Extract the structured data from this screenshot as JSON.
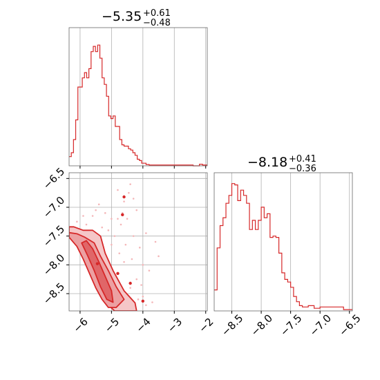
{
  "chart_data": {
    "type": "corner",
    "color": "#d62728",
    "grid": true,
    "hist1": {
      "title_main": "−5.35",
      "title_plus": "+0.61",
      "title_minus": "−0.48",
      "xlim": [
        -6.35,
        -1.95
      ],
      "x_ticks": [
        -6,
        -5,
        -4,
        -3,
        -2
      ],
      "y_range": [
        0,
        1
      ],
      "bin_edges": [
        -6.35,
        -6.28,
        -6.21,
        -6.14,
        -6.07,
        -6.0,
        -5.93,
        -5.86,
        -5.79,
        -5.72,
        -5.65,
        -5.58,
        -5.51,
        -5.44,
        -5.37,
        -5.3,
        -5.23,
        -5.16,
        -5.09,
        -5.02,
        -4.95,
        -4.88,
        -4.81,
        -4.74,
        -4.67,
        -4.6,
        -4.53,
        -4.46,
        -4.39,
        -4.32,
        -4.25,
        -4.18,
        -4.11,
        -4.04,
        -3.97,
        -3.9,
        -3.8,
        -3.6,
        -3.3,
        -3.0,
        -2.7,
        -2.4,
        -2.2,
        -2.1,
        -1.95
      ],
      "counts": [
        0.07,
        0.1,
        0.2,
        0.35,
        0.6,
        0.6,
        0.67,
        0.71,
        0.67,
        0.74,
        0.87,
        0.91,
        0.87,
        0.92,
        0.82,
        0.67,
        0.62,
        0.53,
        0.38,
        0.36,
        0.38,
        0.3,
        0.3,
        0.2,
        0.16,
        0.15,
        0.15,
        0.13,
        0.12,
        0.1,
        0.08,
        0.05,
        0.04,
        0.02,
        0.02,
        0.01,
        0.006,
        0.006,
        0.006,
        0.006,
        0.006,
        0.0,
        0.012,
        0.006
      ]
    },
    "hist2": {
      "title_main": "−8.18",
      "title_plus": "+0.41",
      "title_minus": "−0.36",
      "xlim": [
        -8.8,
        -6.45
      ],
      "x_ticks": [
        -8.5,
        -8.0,
        -7.5,
        -7.0,
        -6.5
      ],
      "x_tick_labels": [
        "−8.5",
        "−8.0",
        "−7.5",
        "−7.0",
        "−6.5"
      ],
      "y_range": [
        0,
        1
      ],
      "bin_edges": [
        -8.8,
        -8.75,
        -8.7,
        -8.65,
        -8.6,
        -8.55,
        -8.5,
        -8.45,
        -8.4,
        -8.35,
        -8.3,
        -8.25,
        -8.2,
        -8.15,
        -8.1,
        -8.05,
        -8.0,
        -7.95,
        -7.9,
        -7.85,
        -7.8,
        -7.75,
        -7.7,
        -7.65,
        -7.6,
        -7.55,
        -7.5,
        -7.45,
        -7.4,
        -7.35,
        -7.3,
        -7.2,
        -7.1,
        -7.0,
        -6.9,
        -6.8,
        -6.7,
        -6.6,
        -6.45
      ],
      "counts": [
        0.16,
        0.48,
        0.65,
        0.71,
        0.82,
        0.88,
        0.97,
        0.96,
        0.84,
        0.92,
        0.88,
        0.82,
        0.62,
        0.69,
        0.62,
        0.69,
        0.79,
        0.71,
        0.74,
        0.56,
        0.57,
        0.56,
        0.44,
        0.29,
        0.24,
        0.22,
        0.18,
        0.11,
        0.07,
        0.04,
        0.03,
        0.04,
        0.02,
        0.03,
        0.03,
        0.03,
        0.03,
        0.01
      ]
    },
    "scatter2d": {
      "xlim": [
        -6.35,
        -1.95
      ],
      "ylim": [
        -8.8,
        -6.4
      ],
      "x_ticks": [
        -6,
        -5,
        -4,
        -3,
        -2
      ],
      "x_tick_labels": [
        "−6",
        "−5",
        "−4",
        "−3",
        "−2"
      ],
      "y_ticks": [
        -6.5,
        -7.0,
        -7.5,
        -8.0,
        -8.5
      ],
      "y_tick_labels": [
        "−6.5",
        "−7.0",
        "−7.5",
        "−8.0",
        "−8.5"
      ],
      "contour_levels": [
        [
          [
            -6.35,
            -7.44
          ],
          [
            -6.2,
            -7.52
          ],
          [
            -5.95,
            -7.72
          ],
          [
            -5.75,
            -7.98
          ],
          [
            -5.6,
            -8.18
          ],
          [
            -5.45,
            -8.38
          ],
          [
            -5.3,
            -8.55
          ],
          [
            -5.1,
            -8.7
          ],
          [
            -4.9,
            -8.8
          ],
          [
            -4.2,
            -8.8
          ],
          [
            -4.25,
            -8.66
          ],
          [
            -4.6,
            -8.45
          ],
          [
            -4.95,
            -8.1
          ],
          [
            -5.2,
            -7.8
          ],
          [
            -5.35,
            -7.5
          ],
          [
            -5.6,
            -7.4
          ],
          [
            -5.9,
            -7.4
          ],
          [
            -6.2,
            -7.34
          ],
          [
            -6.35,
            -7.34
          ]
        ],
        [
          [
            -6.35,
            -7.52
          ],
          [
            -6.1,
            -7.68
          ],
          [
            -5.9,
            -7.9
          ],
          [
            -5.7,
            -8.15
          ],
          [
            -5.5,
            -8.4
          ],
          [
            -5.3,
            -8.6
          ],
          [
            -5.1,
            -8.74
          ],
          [
            -4.85,
            -8.74
          ],
          [
            -4.6,
            -8.6
          ],
          [
            -4.85,
            -8.38
          ],
          [
            -5.1,
            -8.1
          ],
          [
            -5.35,
            -7.85
          ],
          [
            -5.55,
            -7.62
          ],
          [
            -5.85,
            -7.52
          ],
          [
            -6.1,
            -7.46
          ],
          [
            -6.35,
            -7.44
          ]
        ],
        [
          [
            -5.95,
            -7.62
          ],
          [
            -5.75,
            -7.85
          ],
          [
            -5.55,
            -8.1
          ],
          [
            -5.35,
            -8.38
          ],
          [
            -5.15,
            -8.6
          ],
          [
            -4.95,
            -8.65
          ],
          [
            -5.0,
            -8.45
          ],
          [
            -5.2,
            -8.2
          ],
          [
            -5.4,
            -7.95
          ],
          [
            -5.6,
            -7.72
          ],
          [
            -5.8,
            -7.58
          ]
        ]
      ],
      "points": [
        [
          -4.4,
          -6.6
        ],
        [
          -4.8,
          -6.7
        ],
        [
          -4.6,
          -6.9
        ],
        [
          -5.4,
          -6.95
        ],
        [
          -4.3,
          -6.85
        ],
        [
          -4.2,
          -7.05
        ],
        [
          -4.5,
          -7.2
        ],
        [
          -4.7,
          -7.3
        ],
        [
          -5.2,
          -7.1
        ],
        [
          -5.0,
          -7.2
        ],
        [
          -3.9,
          -7.45
        ],
        [
          -3.6,
          -7.6
        ],
        [
          -4.1,
          -7.7
        ],
        [
          -4.3,
          -7.5
        ],
        [
          -4.55,
          -7.65
        ],
        [
          -4.9,
          -7.5
        ],
        [
          -5.1,
          -7.4
        ],
        [
          -5.8,
          -7.3
        ],
        [
          -5.6,
          -7.15
        ],
        [
          -4.0,
          -8.0
        ],
        [
          -3.8,
          -8.1
        ],
        [
          -4.2,
          -8.25
        ],
        [
          -4.6,
          -7.95
        ],
        [
          -4.4,
          -8.4
        ],
        [
          -3.7,
          -8.65
        ],
        [
          -3.9,
          -8.7
        ],
        [
          -4.0,
          -8.55
        ],
        [
          -5.5,
          -7.05
        ],
        [
          -5.3,
          -7.35
        ],
        [
          -5.0,
          -7.65
        ],
        [
          -4.75,
          -7.8
        ],
        [
          -4.35,
          -7.9
        ],
        [
          -4.05,
          -8.35
        ],
        [
          -4.15,
          -8.6
        ],
        [
          -5.9,
          -7.15
        ],
        [
          -6.1,
          -7.25
        ],
        [
          -4.45,
          -6.75
        ],
        [
          -4.65,
          -7.1
        ],
        [
          -3.5,
          -7.85
        ],
        [
          -4.8,
          -7.2
        ]
      ],
      "blobs": [
        [
          -4.6,
          -6.82
        ],
        [
          -4.65,
          -7.13
        ],
        [
          -5.45,
          -7.98
        ],
        [
          -4.4,
          -8.32
        ],
        [
          -4.0,
          -8.63
        ],
        [
          -4.8,
          -8.15
        ]
      ]
    }
  }
}
